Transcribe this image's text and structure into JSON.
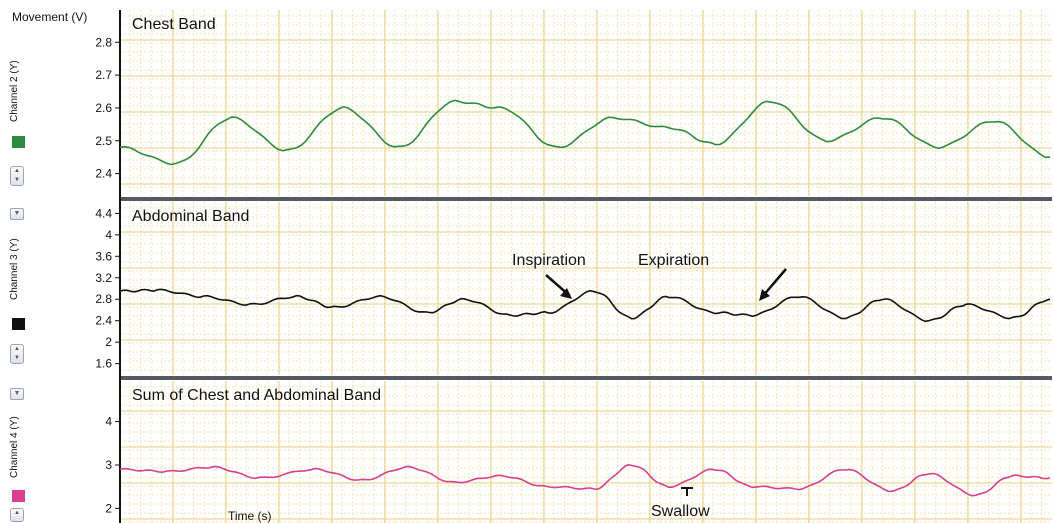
{
  "window": {
    "top_axis_title": "Movement (V)",
    "x_axis_label": "Time (s)"
  },
  "chart_data": [
    {
      "type": "line",
      "title": "Chest Band",
      "ylabel": "Channel 2 (Y)",
      "color": "#2e8b3e",
      "ylim": [
        2.35,
        2.88
      ],
      "yticks": [
        2.4,
        2.5,
        2.6,
        2.7,
        2.8
      ],
      "tick_labels": [
        "2.4",
        "2.5",
        "2.6",
        "2.7",
        "2.8"
      ],
      "grid": true,
      "x": [
        0,
        6,
        12,
        18,
        24,
        30,
        36,
        41,
        47,
        53,
        59,
        64,
        70,
        76,
        82,
        88,
        94,
        100
      ],
      "values": [
        2.48,
        2.43,
        2.57,
        2.47,
        2.6,
        2.48,
        2.62,
        2.6,
        2.48,
        2.57,
        2.54,
        2.49,
        2.62,
        2.5,
        2.57,
        2.48,
        2.56,
        2.45
      ]
    },
    {
      "type": "line",
      "title": "Abdominal Band",
      "ylabel": "Channel 3 (Y)",
      "color": "#111111",
      "ylim": [
        1.5,
        4.5
      ],
      "yticks": [
        1.6,
        2.0,
        2.4,
        2.8,
        3.2,
        3.6,
        4.0,
        4.4
      ],
      "tick_labels": [
        "1.6",
        "2",
        "2.4",
        "2.8",
        "3.2",
        "3.6",
        "4",
        "4.4"
      ],
      "grid": true,
      "x": [
        0,
        4,
        9,
        14,
        19,
        23,
        28,
        33,
        37,
        42,
        46,
        51,
        55,
        59,
        64,
        68,
        73,
        78,
        82,
        87,
        91,
        96,
        100
      ],
      "values": [
        2.95,
        2.97,
        2.85,
        2.7,
        2.85,
        2.65,
        2.85,
        2.55,
        2.8,
        2.5,
        2.55,
        2.95,
        2.45,
        2.85,
        2.55,
        2.5,
        2.85,
        2.45,
        2.8,
        2.4,
        2.7,
        2.45,
        2.8
      ]
    },
    {
      "type": "line",
      "title": "Sum of Chest and Abdominal Band",
      "ylabel": "Channel 4 (Y)",
      "color": "#d6408f",
      "ylim": [
        1.8,
        4.8
      ],
      "yticks": [
        2,
        3,
        4
      ],
      "tick_labels": [
        "2",
        "3",
        "4"
      ],
      "grid": true,
      "x": [
        0,
        5,
        10,
        15,
        21,
        26,
        31,
        36,
        41,
        46,
        51,
        55,
        59,
        64,
        68,
        73,
        78,
        83,
        87,
        92,
        96,
        100
      ],
      "values": [
        2.9,
        2.85,
        2.95,
        2.7,
        2.9,
        2.65,
        2.95,
        2.6,
        2.75,
        2.5,
        2.45,
        3.0,
        2.5,
        2.9,
        2.5,
        2.45,
        2.9,
        2.4,
        2.8,
        2.3,
        2.75,
        2.7
      ]
    }
  ],
  "annotations": [
    {
      "text": "Inspiration",
      "panel": 1
    },
    {
      "text": "Expiration",
      "panel": 1
    },
    {
      "text": "Swallow",
      "panel": 2
    }
  ]
}
